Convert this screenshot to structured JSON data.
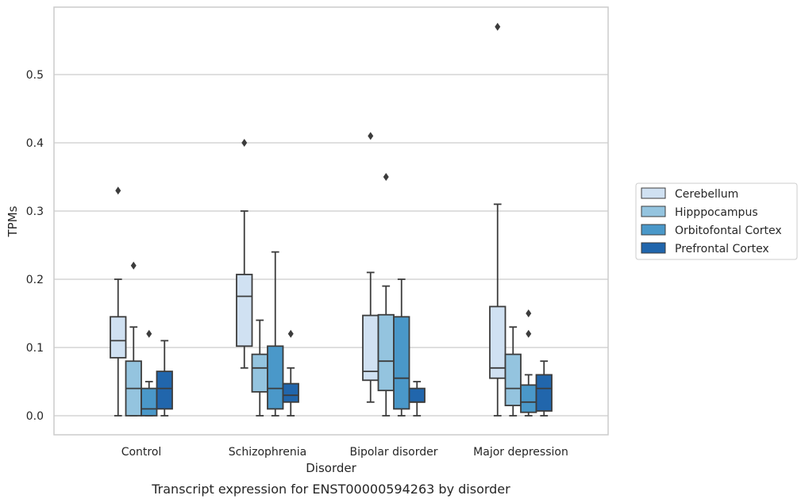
{
  "chart_data": {
    "type": "box",
    "title": "",
    "caption": "Transcript expression for ENST00000594263 by disorder",
    "xlabel": "Disorder",
    "ylabel": "TPMs",
    "ylim": [
      -0.028,
      0.602
    ],
    "yticks": [
      0.0,
      0.1,
      0.2,
      0.3,
      0.4,
      0.5
    ],
    "ytick_labels": [
      "0.0",
      "0.1",
      "0.2",
      "0.3",
      "0.4",
      "0.5"
    ],
    "categories": [
      "Control",
      "Schizophrenia",
      "Bipolar disorder",
      "Major depression"
    ],
    "grid": "horizontal",
    "legend_position": "right",
    "series": [
      {
        "name": "Cerebellum",
        "color": "#d0e1f2",
        "boxes": [
          {
            "whisker_low": 0.0,
            "q1": 0.085,
            "median": 0.11,
            "q3": 0.145,
            "whisker_high": 0.2,
            "outliers": [
              0.33
            ]
          },
          {
            "whisker_low": 0.07,
            "q1": 0.102,
            "median": 0.175,
            "q3": 0.207,
            "whisker_high": 0.3,
            "outliers": [
              0.4
            ]
          },
          {
            "whisker_low": 0.02,
            "q1": 0.052,
            "median": 0.065,
            "q3": 0.147,
            "whisker_high": 0.21,
            "outliers": [
              0.41
            ]
          },
          {
            "whisker_low": 0.0,
            "q1": 0.055,
            "median": 0.07,
            "q3": 0.16,
            "whisker_high": 0.31,
            "outliers": [
              0.57
            ]
          }
        ]
      },
      {
        "name": "Hipppocampus",
        "color": "#94c4df",
        "boxes": [
          {
            "whisker_low": 0.0,
            "q1": 0.0,
            "median": 0.04,
            "q3": 0.08,
            "whisker_high": 0.13,
            "outliers": [
              0.22
            ]
          },
          {
            "whisker_low": 0.0,
            "q1": 0.035,
            "median": 0.07,
            "q3": 0.09,
            "whisker_high": 0.14,
            "outliers": []
          },
          {
            "whisker_low": 0.0,
            "q1": 0.037,
            "median": 0.08,
            "q3": 0.148,
            "whisker_high": 0.19,
            "outliers": [
              0.35
            ]
          },
          {
            "whisker_low": 0.0,
            "q1": 0.015,
            "median": 0.04,
            "q3": 0.09,
            "whisker_high": 0.13,
            "outliers": []
          }
        ]
      },
      {
        "name": "Orbitofontal Cortex",
        "color": "#4a98c9",
        "boxes": [
          {
            "whisker_low": 0.0,
            "q1": 0.0,
            "median": 0.01,
            "q3": 0.04,
            "whisker_high": 0.05,
            "outliers": [
              0.12
            ]
          },
          {
            "whisker_low": 0.0,
            "q1": 0.01,
            "median": 0.04,
            "q3": 0.102,
            "whisker_high": 0.24,
            "outliers": []
          },
          {
            "whisker_low": 0.0,
            "q1": 0.01,
            "median": 0.055,
            "q3": 0.145,
            "whisker_high": 0.2,
            "outliers": []
          },
          {
            "whisker_low": 0.0,
            "q1": 0.005,
            "median": 0.02,
            "q3": 0.045,
            "whisker_high": 0.06,
            "outliers": [
              0.12,
              0.15
            ]
          }
        ]
      },
      {
        "name": "Prefrontal Cortex",
        "color": "#2166ac",
        "boxes": [
          {
            "whisker_low": 0.0,
            "q1": 0.01,
            "median": 0.04,
            "q3": 0.065,
            "whisker_high": 0.11,
            "outliers": []
          },
          {
            "whisker_low": 0.0,
            "q1": 0.02,
            "median": 0.03,
            "q3": 0.047,
            "whisker_high": 0.07,
            "outliers": [
              0.12
            ]
          },
          {
            "whisker_low": 0.0,
            "q1": 0.02,
            "median": 0.02,
            "q3": 0.04,
            "whisker_high": 0.05,
            "outliers": []
          },
          {
            "whisker_low": 0.0,
            "q1": 0.007,
            "median": 0.04,
            "q3": 0.06,
            "whisker_high": 0.08,
            "outliers": []
          }
        ]
      }
    ]
  }
}
